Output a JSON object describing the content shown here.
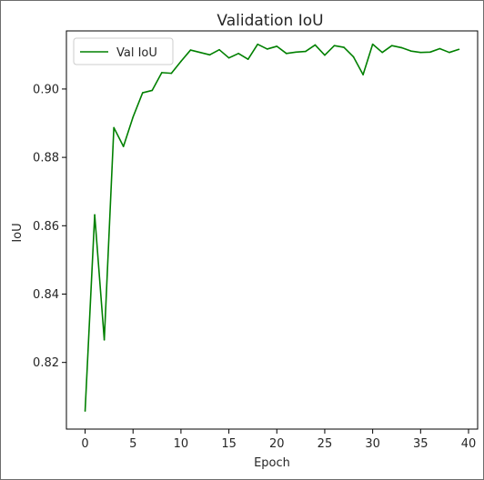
{
  "chart_data": {
    "type": "line",
    "title": "Validation IoU",
    "xlabel": "Epoch",
    "ylabel": "IoU",
    "xlim": [
      -1.95,
      40.95
    ],
    "ylim": [
      0.8005,
      0.917
    ],
    "xticks": [
      0,
      5,
      10,
      15,
      20,
      25,
      30,
      35,
      40
    ],
    "yticks": [
      0.82,
      0.84,
      0.86,
      0.88,
      0.9
    ],
    "grid": false,
    "legend_position": "top-left",
    "series": [
      {
        "name": "Val IoU",
        "color": "#008000",
        "x": [
          0,
          1,
          2,
          3,
          4,
          5,
          6,
          7,
          8,
          9,
          10,
          11,
          12,
          13,
          14,
          15,
          16,
          17,
          18,
          19,
          20,
          21,
          22,
          23,
          24,
          25,
          26,
          27,
          28,
          29,
          30,
          31,
          32,
          33,
          34,
          35,
          36,
          37,
          38,
          39
        ],
        "y": [
          0.8058,
          0.8632,
          0.8266,
          0.8887,
          0.8832,
          0.8918,
          0.8989,
          0.8996,
          0.9048,
          0.9046,
          0.9081,
          0.9114,
          0.9107,
          0.91,
          0.9115,
          0.9091,
          0.9104,
          0.9087,
          0.9131,
          0.9117,
          0.9125,
          0.9104,
          0.9108,
          0.911,
          0.9129,
          0.9099,
          0.9127,
          0.9122,
          0.9094,
          0.9042,
          0.9131,
          0.9107,
          0.9127,
          0.9121,
          0.9111,
          0.9107,
          0.9108,
          0.9118,
          0.9107,
          0.9116
        ]
      }
    ]
  }
}
